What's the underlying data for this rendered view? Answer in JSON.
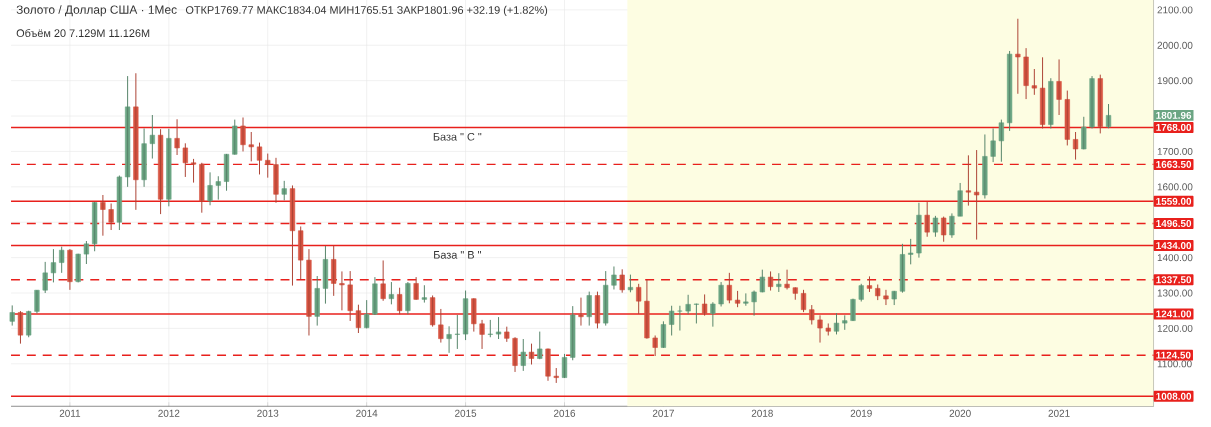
{
  "chart_data": {
    "type": "candlestick",
    "title": "Золото / Доллар США · 1Мес",
    "subtitle": "ОТКР1769.77 МАКС1834.04 МИН1765.51 ЗАКР1801.96 +32.19 (+1.82%)",
    "x": [
      "2010-06",
      "2010-07",
      "2010-08",
      "2010-09",
      "2010-10",
      "2010-11",
      "2010-12",
      "2011-01",
      "2011-02",
      "2011-03",
      "2011-04",
      "2011-05",
      "2011-06",
      "2011-07",
      "2011-08",
      "2011-09",
      "2011-10",
      "2011-11",
      "2011-12",
      "2012-01",
      "2012-02",
      "2012-03",
      "2012-04",
      "2012-05",
      "2012-06",
      "2012-07",
      "2012-08",
      "2012-09",
      "2012-10",
      "2012-11",
      "2012-12",
      "2013-01",
      "2013-02",
      "2013-03",
      "2013-04",
      "2013-05",
      "2013-06",
      "2013-07",
      "2013-08",
      "2013-09",
      "2013-10",
      "2013-11",
      "2013-12",
      "2014-01",
      "2014-02",
      "2014-03",
      "2014-04",
      "2014-05",
      "2014-06",
      "2014-07",
      "2014-08",
      "2014-09",
      "2014-10",
      "2014-11",
      "2014-12",
      "2015-01",
      "2015-02",
      "2015-03",
      "2015-04",
      "2015-05",
      "2015-06",
      "2015-07",
      "2015-08",
      "2015-09",
      "2015-10",
      "2015-11",
      "2015-12",
      "2016-01",
      "2016-02",
      "2016-03",
      "2016-04",
      "2016-05",
      "2016-06",
      "2016-07",
      "2016-08",
      "2016-09",
      "2016-10",
      "2016-11",
      "2016-12",
      "2017-01",
      "2017-02",
      "2017-03",
      "2017-04",
      "2017-05",
      "2017-06",
      "2017-07",
      "2017-08",
      "2017-09",
      "2017-10",
      "2017-11",
      "2017-12",
      "2018-01",
      "2018-02",
      "2018-03",
      "2018-04",
      "2018-05",
      "2018-06",
      "2018-07",
      "2018-08",
      "2018-09",
      "2018-10",
      "2018-11",
      "2018-12",
      "2019-01",
      "2019-02",
      "2019-03",
      "2019-04",
      "2019-05",
      "2019-06",
      "2019-07",
      "2019-08",
      "2019-09",
      "2019-10",
      "2019-11",
      "2019-12",
      "2020-01",
      "2020-02",
      "2020-03",
      "2020-04",
      "2020-05",
      "2020-06",
      "2020-07",
      "2020-08",
      "2020-09",
      "2020-10",
      "2020-11",
      "2020-12",
      "2021-01",
      "2021-02",
      "2021-03",
      "2021-04",
      "2021-05",
      "2021-06",
      "2021-07"
    ],
    "ohlc": [
      [
        1220,
        1265,
        1208,
        1245
      ],
      [
        1245,
        1249,
        1157,
        1181
      ],
      [
        1181,
        1250,
        1175,
        1248
      ],
      [
        1248,
        1308,
        1242,
        1308
      ],
      [
        1308,
        1388,
        1300,
        1357
      ],
      [
        1357,
        1424,
        1330,
        1386
      ],
      [
        1386,
        1431,
        1357,
        1421
      ],
      [
        1421,
        1424,
        1309,
        1332
      ],
      [
        1332,
        1411,
        1330,
        1410
      ],
      [
        1410,
        1447,
        1382,
        1439
      ],
      [
        1439,
        1557,
        1418,
        1556
      ],
      [
        1556,
        1577,
        1462,
        1536
      ],
      [
        1536,
        1553,
        1478,
        1500
      ],
      [
        1500,
        1632,
        1478,
        1628
      ],
      [
        1628,
        1913,
        1600,
        1826
      ],
      [
        1826,
        1921,
        1535,
        1620
      ],
      [
        1620,
        1765,
        1600,
        1722
      ],
      [
        1722,
        1803,
        1680,
        1746
      ],
      [
        1746,
        1763,
        1523,
        1565
      ],
      [
        1565,
        1764,
        1545,
        1737
      ],
      [
        1737,
        1791,
        1690,
        1710
      ],
      [
        1710,
        1723,
        1628,
        1668
      ],
      [
        1668,
        1679,
        1612,
        1664
      ],
      [
        1664,
        1668,
        1527,
        1560
      ],
      [
        1560,
        1641,
        1548,
        1604
      ],
      [
        1604,
        1630,
        1564,
        1615
      ],
      [
        1615,
        1693,
        1589,
        1692
      ],
      [
        1692,
        1790,
        1691,
        1772
      ],
      [
        1772,
        1796,
        1700,
        1719
      ],
      [
        1719,
        1755,
        1672,
        1713
      ],
      [
        1713,
        1725,
        1635,
        1675
      ],
      [
        1675,
        1694,
        1626,
        1663
      ],
      [
        1663,
        1682,
        1555,
        1579
      ],
      [
        1579,
        1617,
        1562,
        1595
      ],
      [
        1595,
        1604,
        1321,
        1476
      ],
      [
        1476,
        1488,
        1338,
        1393
      ],
      [
        1393,
        1424,
        1180,
        1234
      ],
      [
        1234,
        1348,
        1208,
        1313
      ],
      [
        1313,
        1433,
        1270,
        1395
      ],
      [
        1395,
        1434,
        1292,
        1327
      ],
      [
        1327,
        1361,
        1251,
        1323
      ],
      [
        1323,
        1362,
        1221,
        1250
      ],
      [
        1250,
        1267,
        1187,
        1202
      ],
      [
        1202,
        1280,
        1200,
        1240
      ],
      [
        1240,
        1345,
        1238,
        1326
      ],
      [
        1326,
        1392,
        1278,
        1284
      ],
      [
        1284,
        1331,
        1268,
        1296
      ],
      [
        1296,
        1315,
        1240,
        1250
      ],
      [
        1250,
        1331,
        1240,
        1327
      ],
      [
        1327,
        1345,
        1281,
        1282
      ],
      [
        1282,
        1322,
        1273,
        1287
      ],
      [
        1287,
        1293,
        1205,
        1210
      ],
      [
        1210,
        1255,
        1160,
        1171
      ],
      [
        1171,
        1206,
        1131,
        1183
      ],
      [
        1183,
        1238,
        1142,
        1184
      ],
      [
        1184,
        1307,
        1167,
        1284
      ],
      [
        1284,
        1285,
        1191,
        1213
      ],
      [
        1213,
        1224,
        1142,
        1183
      ],
      [
        1183,
        1224,
        1175,
        1184
      ],
      [
        1184,
        1232,
        1170,
        1190
      ],
      [
        1190,
        1205,
        1162,
        1172
      ],
      [
        1172,
        1175,
        1077,
        1095
      ],
      [
        1095,
        1170,
        1080,
        1133
      ],
      [
        1133,
        1157,
        1098,
        1115
      ],
      [
        1115,
        1191,
        1113,
        1142
      ],
      [
        1142,
        1143,
        1052,
        1065
      ],
      [
        1065,
        1088,
        1046,
        1061
      ],
      [
        1061,
        1128,
        1060,
        1118
      ],
      [
        1118,
        1263,
        1110,
        1238
      ],
      [
        1238,
        1287,
        1208,
        1233
      ],
      [
        1233,
        1304,
        1208,
        1293
      ],
      [
        1293,
        1304,
        1200,
        1215
      ],
      [
        1215,
        1362,
        1208,
        1322
      ],
      [
        1322,
        1375,
        1310,
        1351
      ],
      [
        1351,
        1367,
        1301,
        1309
      ],
      [
        1309,
        1352,
        1302,
        1316
      ],
      [
        1316,
        1326,
        1241,
        1277
      ],
      [
        1277,
        1337,
        1171,
        1173
      ],
      [
        1173,
        1180,
        1122,
        1146
      ],
      [
        1146,
        1220,
        1145,
        1211
      ],
      [
        1211,
        1264,
        1180,
        1249
      ],
      [
        1249,
        1264,
        1194,
        1249
      ],
      [
        1249,
        1295,
        1240,
        1268
      ],
      [
        1268,
        1270,
        1214,
        1269
      ],
      [
        1269,
        1296,
        1236,
        1242
      ],
      [
        1242,
        1274,
        1205,
        1269
      ],
      [
        1269,
        1331,
        1262,
        1322
      ],
      [
        1322,
        1357,
        1271,
        1280
      ],
      [
        1280,
        1306,
        1260,
        1271
      ],
      [
        1271,
        1299,
        1264,
        1275
      ],
      [
        1275,
        1307,
        1236,
        1303
      ],
      [
        1303,
        1366,
        1302,
        1345
      ],
      [
        1345,
        1361,
        1307,
        1318
      ],
      [
        1318,
        1356,
        1303,
        1325
      ],
      [
        1325,
        1366,
        1310,
        1315
      ],
      [
        1315,
        1316,
        1281,
        1299
      ],
      [
        1299,
        1309,
        1246,
        1253
      ],
      [
        1253,
        1266,
        1211,
        1224
      ],
      [
        1224,
        1237,
        1160,
        1201
      ],
      [
        1201,
        1214,
        1180,
        1192
      ],
      [
        1192,
        1243,
        1183,
        1215
      ],
      [
        1215,
        1237,
        1196,
        1222
      ],
      [
        1222,
        1284,
        1221,
        1282
      ],
      [
        1282,
        1326,
        1276,
        1321
      ],
      [
        1321,
        1347,
        1303,
        1313
      ],
      [
        1313,
        1324,
        1280,
        1292
      ],
      [
        1292,
        1309,
        1266,
        1283
      ],
      [
        1283,
        1306,
        1266,
        1305
      ],
      [
        1305,
        1439,
        1301,
        1409
      ],
      [
        1409,
        1453,
        1381,
        1413
      ],
      [
        1413,
        1555,
        1400,
        1520
      ],
      [
        1520,
        1557,
        1459,
        1472
      ],
      [
        1472,
        1518,
        1459,
        1512
      ],
      [
        1512,
        1516,
        1445,
        1464
      ],
      [
        1464,
        1525,
        1456,
        1517
      ],
      [
        1517,
        1611,
        1517,
        1589
      ],
      [
        1589,
        1689,
        1547,
        1585
      ],
      [
        1585,
        1704,
        1451,
        1577
      ],
      [
        1577,
        1748,
        1567,
        1686
      ],
      [
        1686,
        1765,
        1670,
        1730
      ],
      [
        1730,
        1790,
        1671,
        1781
      ],
      [
        1781,
        1984,
        1758,
        1975
      ],
      [
        1975,
        2075,
        1863,
        1967
      ],
      [
        1967,
        1992,
        1848,
        1886
      ],
      [
        1886,
        1933,
        1860,
        1879
      ],
      [
        1879,
        1966,
        1765,
        1776
      ],
      [
        1776,
        1907,
        1765,
        1898
      ],
      [
        1898,
        1960,
        1803,
        1847
      ],
      [
        1847,
        1872,
        1717,
        1734
      ],
      [
        1734,
        1755,
        1677,
        1707
      ],
      [
        1707,
        1798,
        1706,
        1769
      ],
      [
        1769,
        1913,
        1765,
        1906
      ],
      [
        1906,
        1917,
        1751,
        1770
      ],
      [
        1769.77,
        1834.04,
        1765.51,
        1801.96
      ]
    ],
    "colors": [
      "#6ba583",
      "#d75442",
      "#6ba583",
      "#6ba583",
      "#6ba583",
      "#6ba583",
      "#6ba583",
      "#d75442",
      "#6ba583",
      "#6ba583",
      "#6ba583",
      "#d75442",
      "#d75442",
      "#6ba583",
      "#6ba583",
      "#d75442",
      "#6ba583",
      "#6ba583",
      "#d75442",
      "#6ba583",
      "#d75442",
      "#d75442",
      "#d75442",
      "#d75442",
      "#6ba583",
      "#6ba583",
      "#6ba583",
      "#6ba583",
      "#d75442",
      "#d75442",
      "#d75442",
      "#d75442",
      "#d75442",
      "#6ba583",
      "#d75442",
      "#d75442",
      "#d75442",
      "#6ba583",
      "#6ba583",
      "#d75442",
      "#d75442",
      "#d75442",
      "#d75442",
      "#6ba583",
      "#6ba583",
      "#d75442",
      "#6ba583",
      "#d75442",
      "#6ba583",
      "#d75442",
      "#6ba583",
      "#d75442",
      "#d75442",
      "#6ba583",
      "#6ba583",
      "#6ba583",
      "#d75442",
      "#d75442",
      "#6ba583",
      "#6ba583",
      "#d75442",
      "#d75442",
      "#6ba583",
      "#d75442",
      "#6ba583",
      "#d75442",
      "#d75442",
      "#6ba583",
      "#6ba583",
      "#d75442",
      "#6ba583",
      "#d75442",
      "#6ba583",
      "#6ba583",
      "#d75442",
      "#6ba583",
      "#d75442",
      "#d75442",
      "#d75442",
      "#6ba583",
      "#6ba583",
      "#6ba583",
      "#6ba583",
      "#6ba583",
      "#d75442",
      "#6ba583",
      "#6ba583",
      "#d75442",
      "#d75442",
      "#6ba583",
      "#6ba583",
      "#6ba583",
      "#d75442",
      "#6ba583",
      "#d75442",
      "#d75442",
      "#d75442",
      "#d75442",
      "#d75442",
      "#d75442",
      "#6ba583",
      "#6ba583",
      "#6ba583",
      "#6ba583",
      "#d75442",
      "#d75442",
      "#d75442",
      "#6ba583",
      "#6ba583",
      "#6ba583",
      "#6ba583",
      "#d75442",
      "#6ba583",
      "#d75442",
      "#6ba583",
      "#6ba583",
      "#d75442",
      "#d75442",
      "#6ba583",
      "#6ba583",
      "#6ba583",
      "#6ba583",
      "#d75442",
      "#d75442",
      "#d75442",
      "#d75442",
      "#6ba583",
      "#d75442",
      "#d75442",
      "#d75442",
      "#6ba583",
      "#6ba583",
      "#d75442",
      "#6ba583"
    ],
    "xlim": [
      "2010-05-27",
      "2021-12-15"
    ],
    "xticks": [
      "2011",
      "2012",
      "2013",
      "2014",
      "2015",
      "2016",
      "2017",
      "2018",
      "2019",
      "2020",
      "2021"
    ],
    "ylim": [
      980,
      2128
    ],
    "yticks": [
      {
        "value": 1100,
        "label": "1100.00"
      },
      {
        "value": 1200,
        "label": "1200.00"
      },
      {
        "value": 1300,
        "label": "1300.00"
      },
      {
        "value": 1400,
        "label": "1400.00"
      },
      {
        "value": 1500,
        "label": null
      },
      {
        "value": 1600,
        "label": "1600.00"
      },
      {
        "value": 1700,
        "label": "1700.00"
      },
      {
        "value": 1800,
        "label": null
      },
      {
        "value": 1900,
        "label": "1900.00"
      },
      {
        "value": 2000,
        "label": "2000.00"
      },
      {
        "value": 2100,
        "label": "2100.00"
      }
    ],
    "grid": true,
    "bands": [
      {
        "axis": "x",
        "from": "2016-08-20",
        "to": "2021-12-15",
        "color": "#fdfde2"
      }
    ],
    "ref_lines": [
      {
        "axis": "y",
        "value": 1768,
        "label": "1768.00",
        "color": "#e8201c",
        "line_style": "solid"
      },
      {
        "axis": "y",
        "value": 1663.5,
        "label": "1663.50",
        "color": "#e8201c",
        "line_style": "dashed"
      },
      {
        "axis": "y",
        "value": 1559,
        "label": "1559.00",
        "color": "#e8201c",
        "line_style": "solid"
      },
      {
        "axis": "y",
        "value": 1496.5,
        "label": "1496.50",
        "color": "#e8201c",
        "line_style": "dashed"
      },
      {
        "axis": "y",
        "value": 1434,
        "label": "1434.00",
        "color": "#e8201c",
        "line_style": "solid"
      },
      {
        "axis": "y",
        "value": 1337.5,
        "label": "1337.50",
        "color": "#e8201c",
        "line_style": "dashed"
      },
      {
        "axis": "y",
        "value": 1241,
        "label": "1241.00",
        "color": "#e8201c",
        "line_style": "solid"
      },
      {
        "axis": "y",
        "value": 1124.5,
        "label": "1124.50",
        "color": "#e8201c",
        "line_style": "dashed"
      },
      {
        "axis": "y",
        "value": 1008,
        "label": "1008.00",
        "color": "#e8201c",
        "line_style": "solid"
      }
    ],
    "annotations": [
      "Объём 20 7.129M 11.126M",
      {
        "text": "База \" С \"",
        "x": "2014-12",
        "y": 1768
      },
      {
        "text": "База \" В \"",
        "x": "2014-12",
        "y": 1434
      },
      "1801.96"
    ]
  }
}
